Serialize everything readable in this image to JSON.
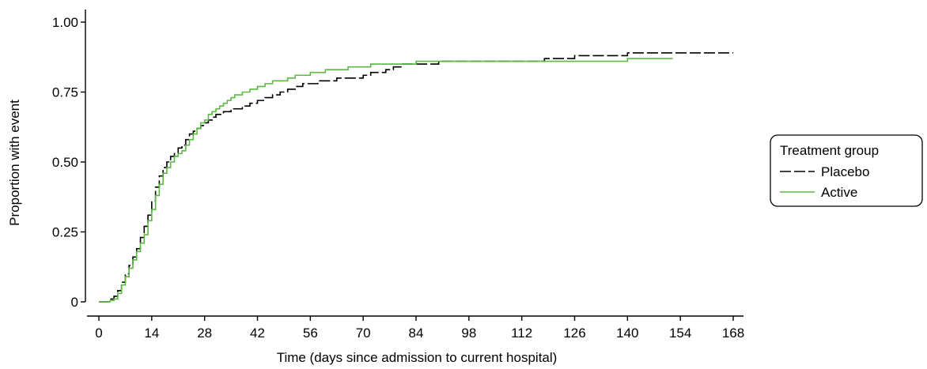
{
  "chart_data": {
    "type": "line",
    "step": true,
    "title": "",
    "xlabel": "Time (days since admission to current hospital)",
    "ylabel": "Proportion with event",
    "xlim": [
      0,
      168
    ],
    "ylim": [
      0,
      1
    ],
    "xticks": [
      0,
      14,
      28,
      42,
      56,
      70,
      84,
      98,
      112,
      126,
      140,
      154,
      168
    ],
    "xtick_labels": [
      "0",
      "14",
      "28",
      "42",
      "56",
      "70",
      "84",
      "98",
      "112",
      "126",
      "140",
      "154",
      "168"
    ],
    "yticks": [
      0,
      0.25,
      0.5,
      0.75,
      1.0
    ],
    "ytick_labels": [
      "0",
      "0.25",
      "0.50",
      "0.75",
      "1.00"
    ],
    "grid": false,
    "legend": {
      "title": "Treatment group",
      "placement": "right",
      "entries": [
        "Placebo",
        "Active"
      ]
    },
    "series": [
      {
        "name": "Placebo",
        "color": "#000000",
        "dash": true,
        "x": [
          0,
          3,
          4,
          5,
          6,
          7,
          8,
          9,
          10,
          11,
          12,
          13,
          14,
          15,
          16,
          17,
          18,
          19,
          20,
          21,
          22,
          23,
          24,
          25,
          26,
          27,
          28,
          29,
          30,
          31,
          32,
          33,
          34,
          35,
          36,
          38,
          40,
          42,
          44,
          46,
          48,
          50,
          52,
          54,
          56,
          58,
          60,
          63,
          66,
          70,
          72,
          74,
          76,
          78,
          80,
          82,
          84,
          90,
          98,
          105,
          112,
          118,
          126,
          133,
          140,
          147,
          154,
          168
        ],
        "y": [
          0,
          0.01,
          0.02,
          0.04,
          0.07,
          0.1,
          0.13,
          0.16,
          0.19,
          0.23,
          0.27,
          0.31,
          0.36,
          0.41,
          0.45,
          0.48,
          0.5,
          0.52,
          0.53,
          0.55,
          0.56,
          0.58,
          0.6,
          0.61,
          0.62,
          0.63,
          0.64,
          0.65,
          0.66,
          0.67,
          0.67,
          0.68,
          0.68,
          0.69,
          0.69,
          0.7,
          0.71,
          0.72,
          0.73,
          0.74,
          0.75,
          0.76,
          0.77,
          0.78,
          0.78,
          0.79,
          0.79,
          0.8,
          0.8,
          0.81,
          0.82,
          0.82,
          0.83,
          0.84,
          0.85,
          0.85,
          0.85,
          0.86,
          0.86,
          0.86,
          0.86,
          0.87,
          0.88,
          0.88,
          0.89,
          0.89,
          0.89,
          0.89
        ]
      },
      {
        "name": "Active",
        "color": "#5cb944",
        "dash": false,
        "x": [
          0,
          3,
          4,
          5,
          6,
          7,
          8,
          9,
          10,
          11,
          12,
          13,
          14,
          15,
          16,
          17,
          18,
          19,
          20,
          21,
          22,
          23,
          24,
          25,
          26,
          27,
          28,
          29,
          30,
          31,
          32,
          33,
          34,
          35,
          36,
          38,
          40,
          42,
          44,
          46,
          48,
          50,
          52,
          54,
          56,
          58,
          60,
          63,
          66,
          70,
          72,
          74,
          76,
          78,
          80,
          82,
          84,
          90,
          98,
          105,
          112,
          118,
          126,
          133,
          140,
          147,
          152
        ],
        "y": [
          0,
          0.005,
          0.01,
          0.03,
          0.06,
          0.09,
          0.12,
          0.15,
          0.18,
          0.21,
          0.24,
          0.29,
          0.33,
          0.38,
          0.42,
          0.46,
          0.48,
          0.5,
          0.52,
          0.53,
          0.54,
          0.56,
          0.58,
          0.6,
          0.62,
          0.64,
          0.65,
          0.67,
          0.68,
          0.69,
          0.7,
          0.71,
          0.72,
          0.73,
          0.74,
          0.75,
          0.76,
          0.77,
          0.78,
          0.79,
          0.79,
          0.8,
          0.81,
          0.81,
          0.82,
          0.82,
          0.83,
          0.83,
          0.84,
          0.84,
          0.85,
          0.85,
          0.85,
          0.85,
          0.85,
          0.85,
          0.86,
          0.86,
          0.86,
          0.86,
          0.86,
          0.86,
          0.86,
          0.86,
          0.87,
          0.87,
          0.87
        ]
      }
    ]
  }
}
